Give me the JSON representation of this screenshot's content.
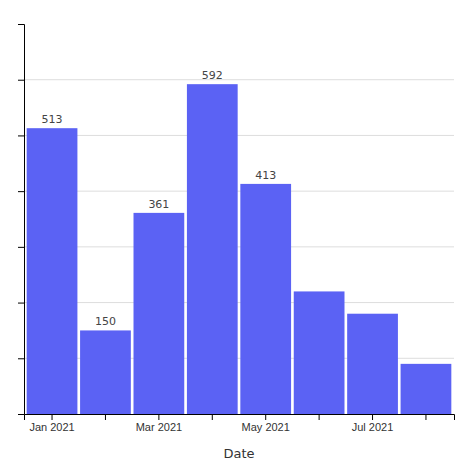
{
  "chart_data": {
    "type": "bar",
    "xlabel": "Date",
    "categories": [
      "Jan 2021",
      null,
      "Mar 2021",
      null,
      "May 2021",
      null,
      "Jul 2021",
      null
    ],
    "values": [
      513,
      150,
      361,
      592,
      413,
      220,
      180,
      90
    ],
    "value_labels": [
      "513",
      "150",
      "361",
      "592",
      "413",
      null,
      null,
      null
    ],
    "data_labels": true,
    "color": "#5B62F4",
    "ylim": [
      0,
      700
    ],
    "yticks": [
      100,
      200,
      300,
      400,
      500,
      600
    ],
    "grid": true,
    "tick_labels": "x"
  }
}
